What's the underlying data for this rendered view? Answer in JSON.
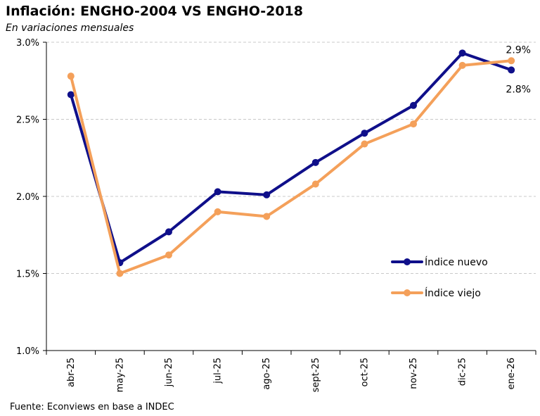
{
  "header": {
    "title": "Inflación: ENGHO-2004 VS ENGHO-2018",
    "subtitle": "En variaciones mensuales"
  },
  "footer": {
    "source": "Fuente: Econviews en base a INDEC"
  },
  "chart_data": {
    "type": "line",
    "title": "Inflación: ENGHO-2004 VS ENGHO-2018",
    "subtitle": "En variaciones mensuales",
    "xlabel": "",
    "ylabel": "",
    "categories": [
      "abr-25",
      "may-25",
      "jun-25",
      "jul-25",
      "ago-25",
      "sept-25",
      "oct-25",
      "nov-25",
      "dic-25",
      "ene-26"
    ],
    "ylim": [
      1.0,
      3.0
    ],
    "yticks": [
      1.0,
      1.5,
      2.0,
      2.5,
      3.0
    ],
    "ytick_labels": [
      "1.0%",
      "1.5%",
      "2.0%",
      "2.5%",
      "3.0%"
    ],
    "grid": "horizontal dashed",
    "legend_position": "right",
    "series": [
      {
        "name": "Índice nuevo",
        "color": "#0f0f8a",
        "values": [
          2.66,
          1.57,
          1.77,
          2.03,
          2.01,
          2.22,
          2.41,
          2.59,
          2.93,
          2.82
        ],
        "end_label": "2.8%"
      },
      {
        "name": "Índice viejo",
        "color": "#f4a05a",
        "values": [
          2.78,
          1.5,
          1.62,
          1.9,
          1.87,
          2.08,
          2.34,
          2.47,
          2.85,
          2.88
        ],
        "end_label": "2.9%"
      }
    ]
  }
}
